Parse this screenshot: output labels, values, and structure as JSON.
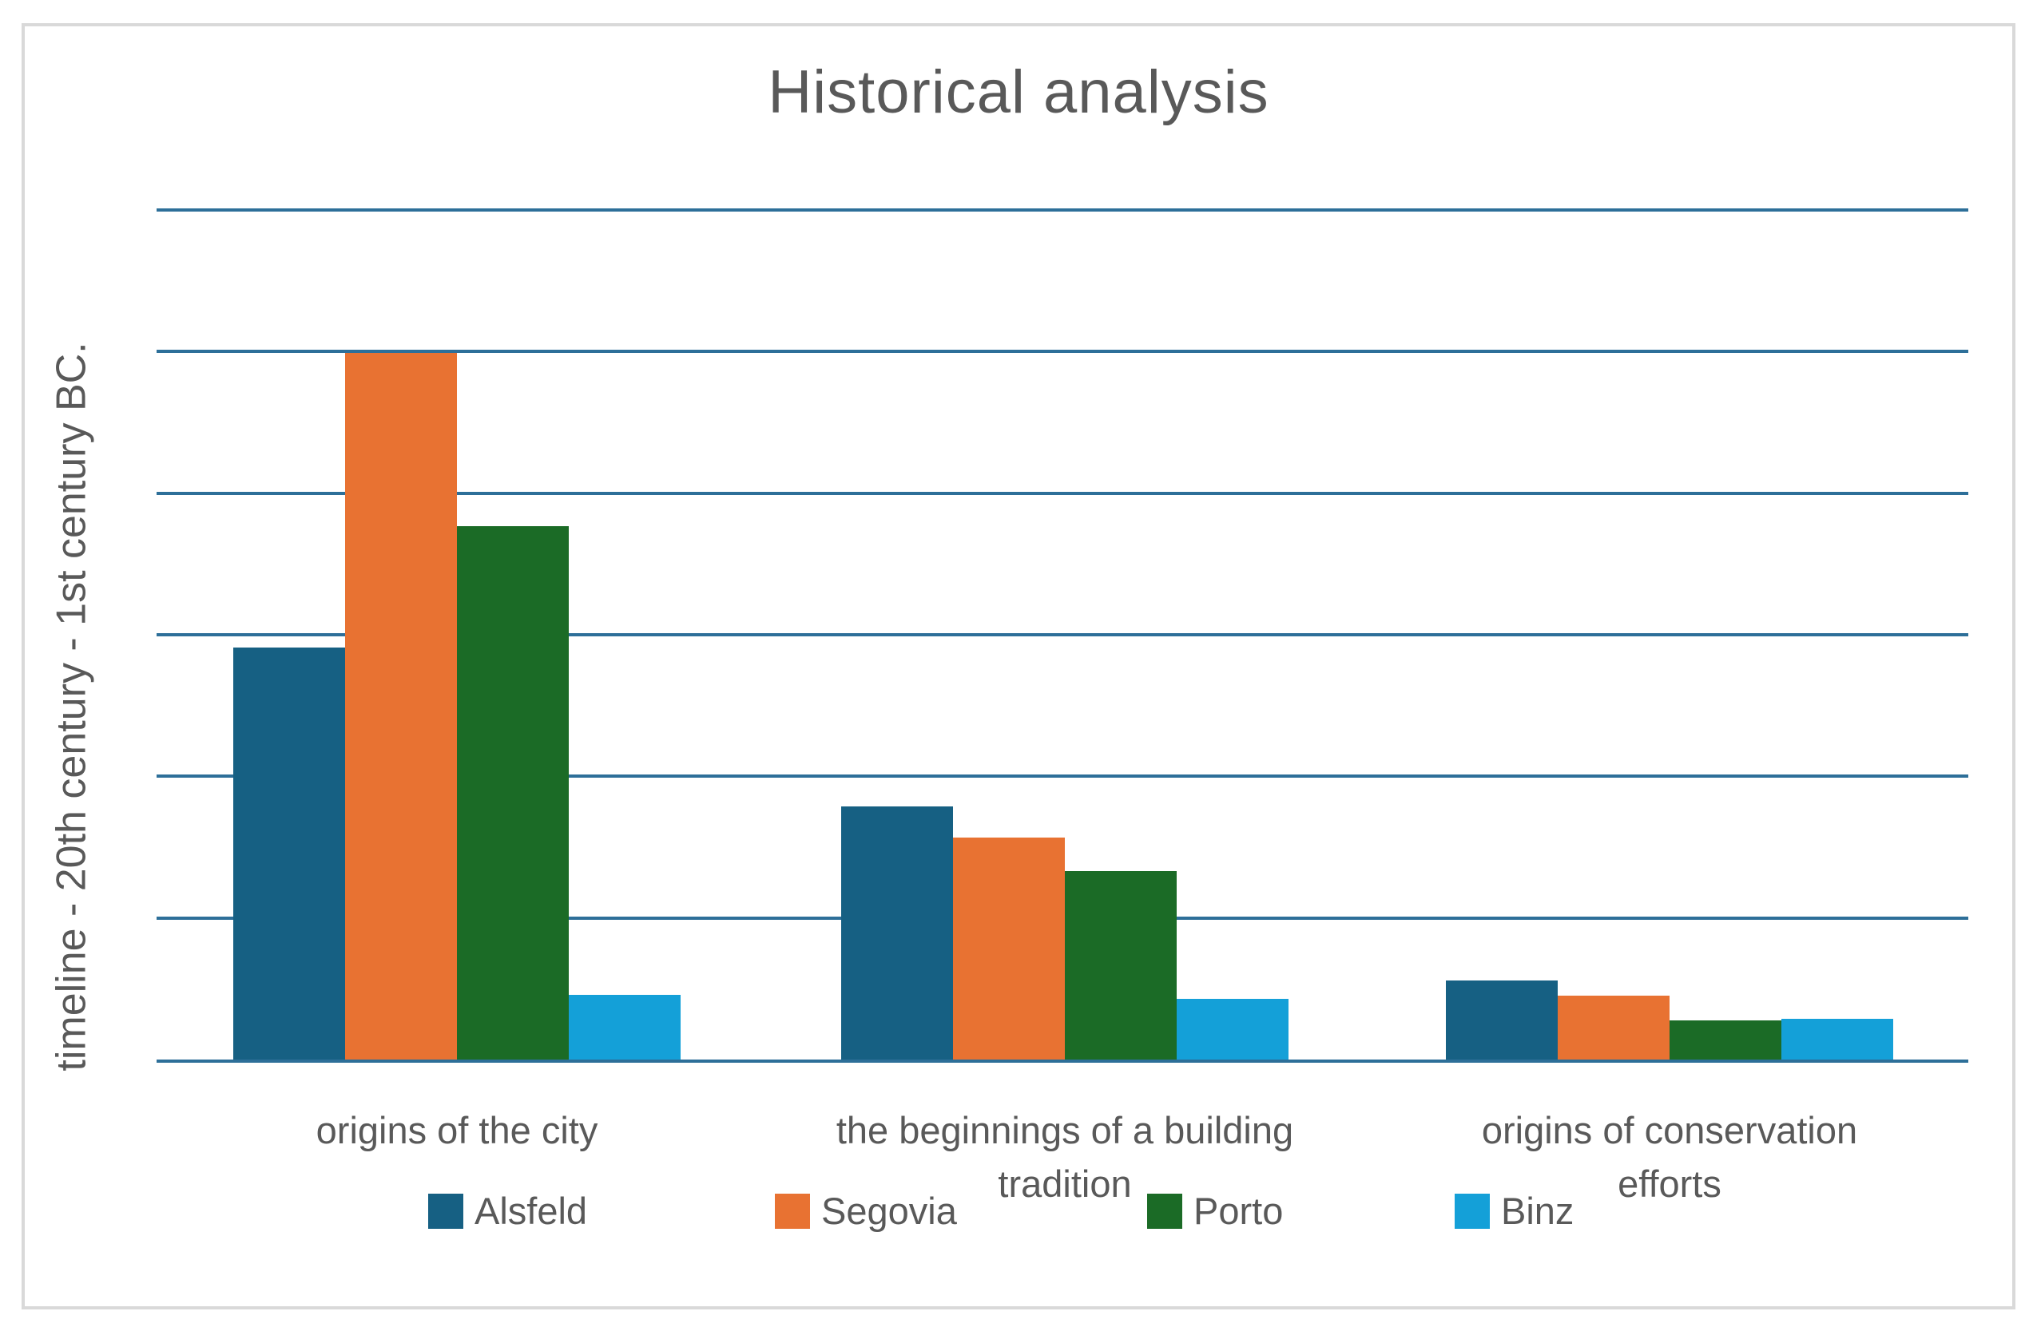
{
  "page": {
    "background_color": "#FFFFFF",
    "frame_border_color": "#D9D9D9",
    "text_color": "#595959"
  },
  "chart_data": {
    "type": "bar",
    "title": "Historical analysis",
    "ylabel": "timeline - 20th century - 1st century BC.",
    "xlabel": "",
    "categories": [
      "origins of the city",
      "the beginnings of a building tradition",
      "origins of conservation efforts"
    ],
    "category_label_lines": [
      [
        "origins of the city"
      ],
      [
        "the beginnings of a building",
        "tradition"
      ],
      [
        "origins of conservation",
        "efforts"
      ]
    ],
    "series": [
      {
        "name": "Alsfeld",
        "color": "#166083",
        "values": [
          2.92,
          1.8,
          0.57
        ]
      },
      {
        "name": "Segovia",
        "color": "#E87232",
        "values": [
          5.0,
          1.58,
          0.46
        ]
      },
      {
        "name": "Porto",
        "color": "#1B6B26",
        "values": [
          3.78,
          1.34,
          0.29
        ]
      },
      {
        "name": "Binz",
        "color": "#14A0D8",
        "values": [
          0.47,
          0.44,
          0.3
        ]
      }
    ],
    "ylim": [
      0,
      6
    ],
    "y_tick_labels_visible": false,
    "gridlines": {
      "horizontal": true,
      "interval": 1,
      "color": "#2D6F99"
    },
    "axis_line_color": "#2D6F99",
    "legend_position": "bottom"
  }
}
